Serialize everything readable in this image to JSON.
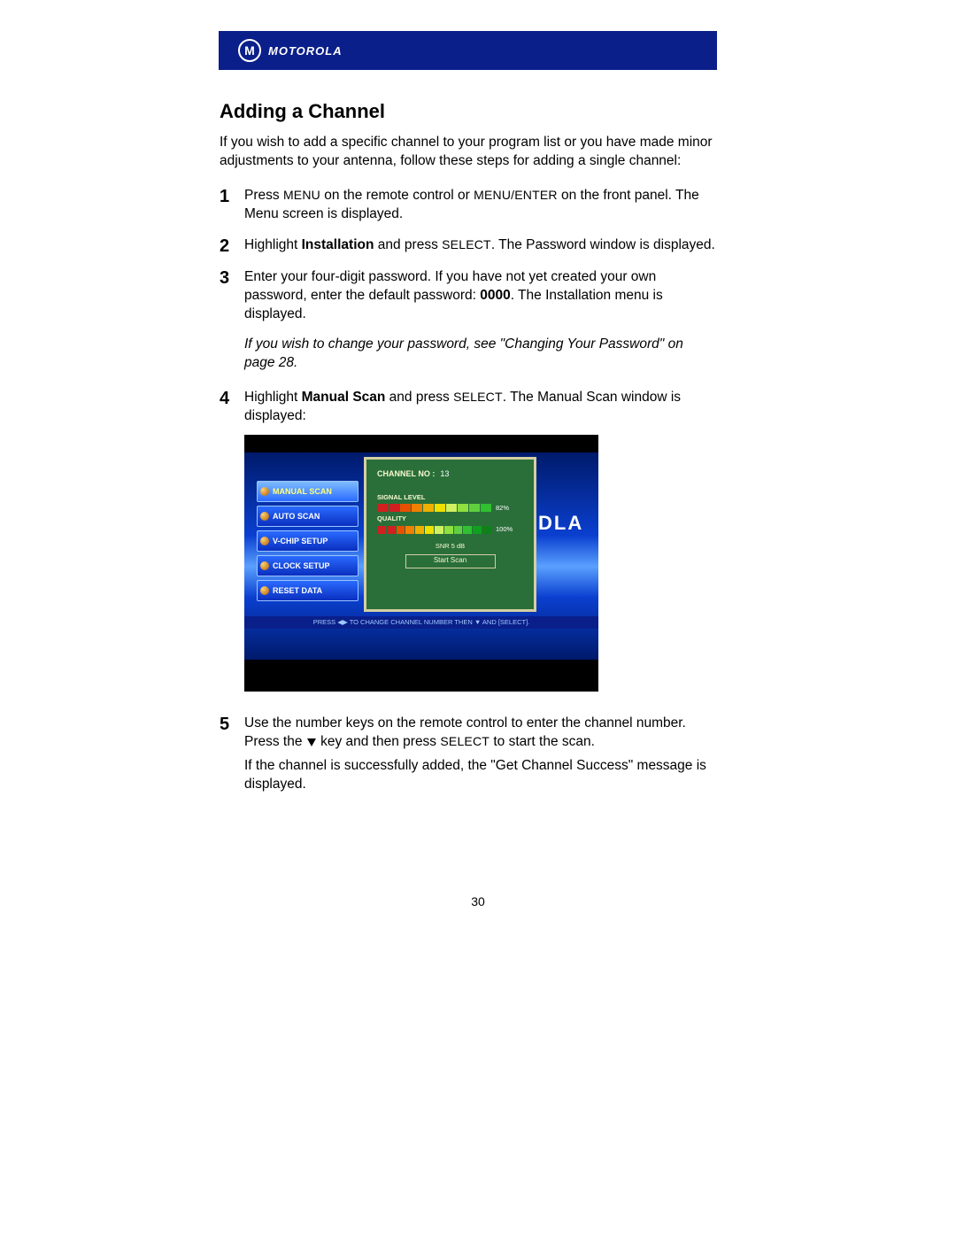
{
  "brand": "MOTOROLA",
  "logo_letter": "M",
  "title": "Adding a Channel",
  "intro": "If you wish to add a specific channel to your program list or you have made minor adjustments to your antenna, follow these steps for adding a single channel:",
  "steps": {
    "s1_num": "1",
    "s1_a": "Press ",
    "s1_menu": "MENU",
    "s1_b": " on the remote control or ",
    "s1_menuenter": "MENU/ENTER",
    "s1_c": " on the front panel. The Menu screen is displayed.",
    "s2_num": "2",
    "s2_a": "Highlight ",
    "s2_bold": "Installation",
    "s2_b": " and press ",
    "s2_select": "SELECT",
    "s2_c": ". The Password window is displayed.",
    "s3_num": "3",
    "s3_a": "Enter your four-digit password. If you have not yet created your own password, enter the default password: ",
    "s3_bold": "0000",
    "s3_b": ". The Installation menu is displayed.",
    "note": "If you wish to change your password, see \"Changing Your Password\" on page 28.",
    "s4_num": "4",
    "s4_a": "Highlight ",
    "s4_bold": "Manual Scan",
    "s4_b": " and press ",
    "s4_select": "SELECT",
    "s4_c": ". The Manual Scan window is displayed:",
    "s5_num": "5",
    "s5_a": "Use the number keys on the remote control to enter the channel number. Press the ",
    "s5_b": " key and then press ",
    "s5_select": "SELECT",
    "s5_c": " to start the scan.",
    "s5_d": "If the channel is successfully added, the \"Get Channel Success\" message is displayed."
  },
  "tv": {
    "sidebar": {
      "i0": "MANUAL SCAN",
      "i1": "AUTO SCAN",
      "i2": "V-CHIP SETUP",
      "i3": "CLOCK SETUP",
      "i4": "RESET DATA"
    },
    "channel_label": "CHANNEL NO :",
    "channel_val": "13",
    "signal_label": "SIGNAL LEVEL",
    "signal_pct": "82%",
    "quality_label": "QUALITY",
    "quality_pct": "100%",
    "snr": "SNR     5    dB",
    "scan_btn": "Start Scan",
    "footer": "PRESS ◀▶ TO CHANGE CHANNEL NUMBER THEN ▼ AND [SELECT].",
    "right_bg": "DLA",
    "bar_colors": [
      "#d02020",
      "#d02020",
      "#e85000",
      "#f08000",
      "#f0b000",
      "#f0e000",
      "#d0f060",
      "#90e040",
      "#60d040",
      "#30c030",
      "#10a020",
      "#108018"
    ],
    "signal_segments": 10,
    "quality_segments": 12
  },
  "page_number": "30"
}
